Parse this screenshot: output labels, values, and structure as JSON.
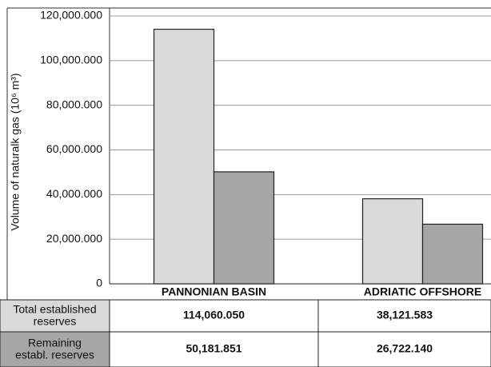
{
  "chart_data": {
    "type": "bar",
    "y_label": "Volume of naturalk gas (10⁶ m³)",
    "categories": [
      "PANNONIAN BASIN",
      "ADRIATIC OFFSHORE"
    ],
    "series": [
      {
        "name": "Total established reserves",
        "color": "#d9d9d9",
        "values": [
          114060.05,
          38121.583
        ],
        "value_labels": [
          "114,060.050",
          "38,121.583"
        ]
      },
      {
        "name": "Remaining establ. reserves",
        "color": "#a6a6a6",
        "values": [
          50181.851,
          26722.14
        ],
        "value_labels": [
          "50,181.851",
          "26,722.140"
        ]
      }
    ],
    "ylim": [
      0,
      120000
    ],
    "yticks": [
      0,
      {
        "value": 20000,
        "label": "20,000.000"
      },
      {
        "value": 40000,
        "label": "40,000.000"
      },
      {
        "value": 60000,
        "label": "60,000.000"
      },
      {
        "value": 80000,
        "label": "80,000.000"
      },
      {
        "value": 100000,
        "label": "100,000.000"
      },
      {
        "value": 120000,
        "label": "120,000.000"
      }
    ],
    "grid": true
  }
}
